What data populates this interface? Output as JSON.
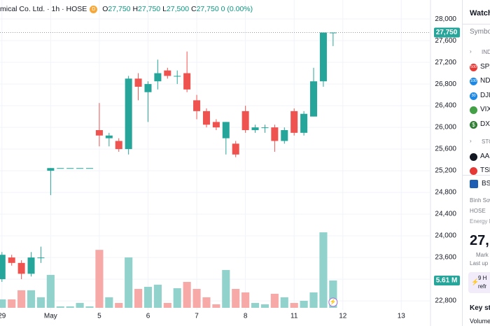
{
  "chart_data": {
    "type": "candlestick",
    "legend": {
      "symbol": "mical Co. Ltd. · 1h · HOSE",
      "badge": "D",
      "ohlc": [
        {
          "key": "O",
          "value": "27,750"
        },
        {
          "key": "H",
          "value": "27,750"
        },
        {
          "key": "L",
          "value": "27,500"
        },
        {
          "key": "C",
          "value": "27,750"
        }
      ],
      "change": "0 (0.00%)"
    },
    "x": [
      0,
      1,
      2,
      3,
      4,
      5,
      6,
      7,
      8,
      9,
      10,
      11,
      12,
      13,
      14,
      15,
      16,
      17,
      18,
      19,
      20,
      21,
      22,
      23,
      24,
      25,
      26,
      27,
      28,
      29,
      30,
      31,
      32,
      33,
      34
    ],
    "open": [
      23200,
      23600,
      23500,
      23300,
      23600,
      25200,
      25250,
      25250,
      25250,
      25250,
      25950,
      25800,
      25750,
      25600,
      26900,
      26650,
      26850,
      27050,
      26950,
      27000,
      26500,
      26300,
      26100,
      25800,
      25700,
      26300,
      25950,
      26000,
      26000,
      25750,
      26300,
      25900,
      26200,
      26850,
      27750
    ],
    "high": [
      23700,
      23650,
      23550,
      23700,
      23800,
      25250,
      25250,
      25250,
      25250,
      25250,
      26450,
      25900,
      25800,
      26950,
      27000,
      26850,
      27250,
      27100,
      27050,
      27400,
      26600,
      26350,
      26150,
      26100,
      25750,
      26400,
      26050,
      26050,
      26050,
      26000,
      26350,
      26300,
      27100,
      27750,
      27750
    ],
    "low": [
      23150,
      23450,
      23200,
      23250,
      23500,
      24750,
      25250,
      25250,
      25250,
      25250,
      25650,
      25650,
      25550,
      25500,
      26500,
      26100,
      26700,
      26900,
      26800,
      26650,
      26150,
      26000,
      25950,
      25500,
      25450,
      25900,
      25900,
      25900,
      25550,
      25700,
      25850,
      25850,
      26200,
      26750,
      27500
    ],
    "close": [
      23650,
      23500,
      23300,
      23600,
      23600,
      25250,
      25250,
      25250,
      25250,
      25250,
      25850,
      25850,
      25600,
      26900,
      26750,
      26800,
      27000,
      26950,
      26950,
      26700,
      26300,
      26050,
      26000,
      26100,
      25500,
      25950,
      26000,
      26000,
      25750,
      25950,
      25900,
      26250,
      26850,
      27750,
      27750
    ],
    "volume": [
      1.73,
      1.73,
      3.6,
      3.6,
      2.16,
      6.76,
      0.29,
      0.29,
      1.0,
      0.29,
      11.9,
      2.16,
      1.0,
      10.35,
      3.88,
      4.31,
      4.75,
      1.0,
      4.03,
      5.32,
      3.88,
      2.16,
      0.72,
      7.77,
      3.88,
      3.16,
      1.0,
      0.72,
      2.88,
      2.16,
      1.0,
      1.44,
      3.16,
      15.5,
      5.61
    ],
    "xlim": [
      -0.2,
      44.0
    ],
    "xticks": [
      {
        "value": 0,
        "label": "29"
      },
      {
        "value": 5,
        "label": "May"
      },
      {
        "value": 10,
        "label": "5"
      },
      {
        "value": 15,
        "label": "6"
      },
      {
        "value": 20,
        "label": "7"
      },
      {
        "value": 25,
        "label": "8"
      },
      {
        "value": 30,
        "label": "11"
      },
      {
        "value": 35,
        "label": "12"
      },
      {
        "value": 41,
        "label": "13"
      }
    ],
    "ylim": [
      22530,
      28350
    ],
    "yticks": [
      {
        "value": 22800,
        "label": "22,800"
      },
      {
        "value": 23200,
        "label": "23,200"
      },
      {
        "value": 23600,
        "label": "23,600"
      },
      {
        "value": 24000,
        "label": "24,000"
      },
      {
        "value": 24400,
        "label": "24,400"
      },
      {
        "value": 24800,
        "label": "24,800"
      },
      {
        "value": 25200,
        "label": "25,200"
      },
      {
        "value": 25600,
        "label": "25,600"
      },
      {
        "value": 26000,
        "label": "26,000"
      },
      {
        "value": 26400,
        "label": "26,400"
      },
      {
        "value": 26800,
        "label": "26,800"
      },
      {
        "value": 27200,
        "label": "27,200"
      },
      {
        "value": 27600,
        "label": "27,600"
      },
      {
        "value": 28000,
        "label": "28,000"
      }
    ],
    "volume_ylim": [
      0,
      15.8
    ],
    "last_price": {
      "value": 27750,
      "label": "27,750"
    },
    "last_volume": {
      "value": 5.61,
      "label": "5.61 M"
    },
    "up_color": "#26a69a",
    "down_color": "#ef5350",
    "volume_up_color": "#92d2cc",
    "volume_down_color": "#f7a9a7",
    "grid": true
  },
  "panel": {
    "title": "Watchl",
    "column": "Symbol",
    "indices_label": "IND",
    "indices": [
      {
        "icon": "500",
        "symbol": "SPX"
      },
      {
        "icon": "100",
        "symbol": "ND"
      },
      {
        "icon": "30",
        "symbol": "DJI"
      },
      {
        "icon": "",
        "symbol": "VIX"
      },
      {
        "icon": "$",
        "symbol": "DX"
      }
    ],
    "stocks_label": "STO",
    "stocks": [
      {
        "symbol": "AA"
      },
      {
        "symbol": "TSL"
      }
    ],
    "detail": {
      "symbol": "BS",
      "name": "Bình Sơn",
      "exchange": "HOSE",
      "sector": "Energy M",
      "price": "27,",
      "status": "Mark",
      "last_update": "Last up",
      "notice": [
        "9 H",
        "refr"
      ],
      "key_stats": "Key sta",
      "volume": "Volume"
    }
  }
}
